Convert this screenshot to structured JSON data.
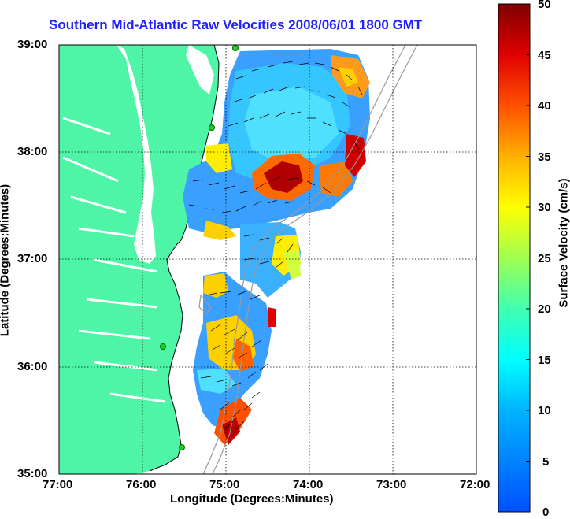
{
  "title": "Southern Mid-Atlantic Raw Velocities 2008/06/01 1800 GMT",
  "axes": {
    "xlabel": "Longitude (Degrees:Minutes)",
    "ylabel": "Latitude (Degrees:Minutes)",
    "x_ticks": [
      "77:00",
      "76:00",
      "75:00",
      "74:00",
      "73:00",
      "72:00"
    ],
    "y_ticks": [
      "39:00",
      "38:00",
      "37:00",
      "36:00",
      "35:00"
    ]
  },
  "colorbar": {
    "label": "Surface Velocity (cm/s)",
    "ticks": [
      "50",
      "45",
      "40",
      "35",
      "30",
      "25",
      "20",
      "15",
      "10",
      "5",
      "0"
    ],
    "range": [
      0,
      50
    ]
  },
  "colors": {
    "land": "#4ff5a6",
    "water": "#ffffff",
    "title": "#1f1fff",
    "station": "#22cc22"
  }
}
